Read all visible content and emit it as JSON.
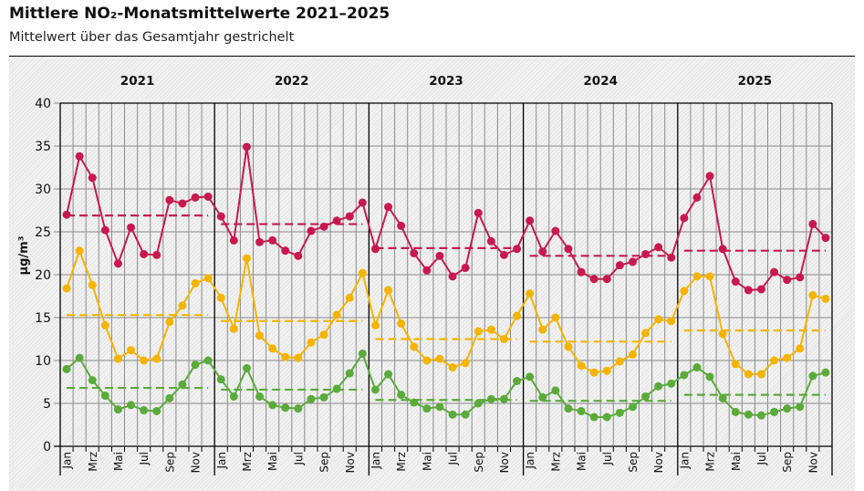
{
  "header": {
    "title": "Mittlere NO₂-Monatsmittelwerte 2021–2025",
    "subtitle": "Mittelwert über das Gesamtjahr gestrichelt"
  },
  "chart_data": {
    "type": "line",
    "title": "Mittlere NO₂-Monatsmittelwerte 2021–2025",
    "subtitle": "Mittelwert über das Gesamtjahr gestrichelt",
    "ylabel": "µg/m³",
    "xlabel": "",
    "ylim": [
      0,
      40
    ],
    "yticks": [
      0,
      5,
      10,
      15,
      20,
      25,
      30,
      35,
      40
    ],
    "grid": true,
    "years": [
      "2021",
      "2022",
      "2023",
      "2024",
      "2025"
    ],
    "month_labels": [
      "Jan",
      "",
      "Mrz",
      "",
      "Mai",
      "",
      "Jul",
      "",
      "Sep",
      "",
      "Nov",
      ""
    ],
    "series": [
      {
        "name": "red",
        "color": "#c8194f",
        "values": [
          [
            27.0,
            33.8,
            31.3,
            25.2,
            21.3,
            25.5,
            22.4,
            22.3,
            28.7,
            28.3,
            29.0,
            29.1
          ],
          [
            26.8,
            24.0,
            34.9,
            23.8,
            24.0,
            22.8,
            22.2,
            25.1,
            25.6,
            26.3,
            26.8,
            28.4
          ],
          [
            23.0,
            27.9,
            25.7,
            22.5,
            20.5,
            22.2,
            19.8,
            20.8,
            27.2,
            23.9,
            22.3,
            23.0
          ],
          [
            26.3,
            22.7,
            25.1,
            23.0,
            20.3,
            19.5,
            19.5,
            21.1,
            21.5,
            22.4,
            23.2,
            22.0
          ],
          [
            26.6,
            29.0,
            31.5,
            23.0,
            19.2,
            18.2,
            18.3,
            20.3,
            19.4,
            19.7,
            25.9,
            24.3
          ]
        ],
        "annual_means": [
          26.9,
          25.9,
          23.1,
          22.2,
          22.8
        ]
      },
      {
        "name": "yellow",
        "color": "#f5b400",
        "values": [
          [
            18.4,
            22.8,
            18.8,
            14.1,
            10.2,
            11.2,
            10.0,
            10.2,
            14.5,
            16.4,
            19.0,
            19.6
          ],
          [
            17.3,
            13.7,
            21.9,
            12.9,
            11.4,
            10.4,
            10.3,
            12.1,
            13.0,
            15.3,
            17.3,
            20.2
          ],
          [
            14.1,
            18.2,
            14.3,
            11.6,
            10.0,
            10.2,
            9.2,
            9.7,
            13.4,
            13.6,
            12.5,
            15.2
          ],
          [
            17.8,
            13.6,
            15.0,
            11.6,
            9.4,
            8.6,
            8.8,
            9.9,
            10.7,
            13.2,
            14.8,
            14.6
          ],
          [
            18.1,
            19.8,
            19.8,
            13.1,
            9.6,
            8.4,
            8.4,
            10.0,
            10.3,
            11.4,
            17.6,
            17.2
          ]
        ],
        "annual_means": [
          15.3,
          14.6,
          12.5,
          12.2,
          13.5
        ]
      },
      {
        "name": "green",
        "color": "#5aab3a",
        "values": [
          [
            9.0,
            10.3,
            7.7,
            5.9,
            4.3,
            4.8,
            4.2,
            4.1,
            5.6,
            7.2,
            9.5,
            10.0
          ],
          [
            7.8,
            5.8,
            9.1,
            5.8,
            4.8,
            4.5,
            4.4,
            5.5,
            5.7,
            6.7,
            8.5,
            10.8
          ],
          [
            6.6,
            8.4,
            6.0,
            5.1,
            4.4,
            4.6,
            3.7,
            3.7,
            5.0,
            5.5,
            5.5,
            7.6
          ],
          [
            8.1,
            5.7,
            6.5,
            4.4,
            4.1,
            3.4,
            3.4,
            3.9,
            4.6,
            5.8,
            7.0,
            7.3
          ],
          [
            8.3,
            9.2,
            8.1,
            5.6,
            4.0,
            3.7,
            3.6,
            4.0,
            4.4,
            4.6,
            8.2,
            8.6
          ]
        ],
        "annual_means": [
          6.8,
          6.6,
          5.4,
          5.3,
          6.0
        ]
      }
    ]
  }
}
